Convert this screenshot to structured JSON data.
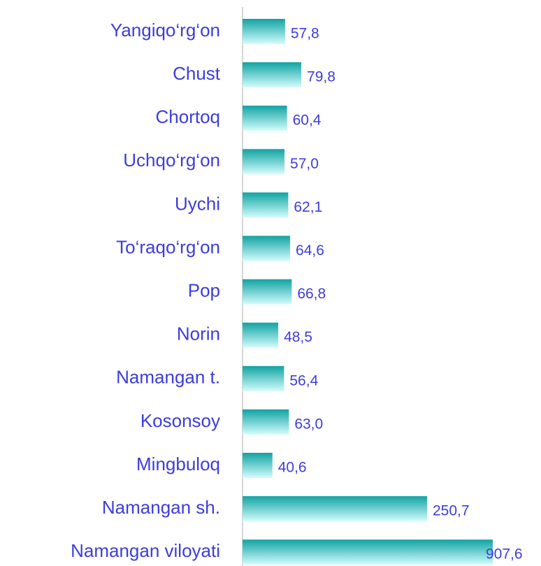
{
  "chart_data": {
    "type": "bar",
    "orientation": "horizontal",
    "categories": [
      "Yangiqo‘rg‘on",
      "Chust",
      "Chortoq",
      "Uchqo‘rg‘on",
      "Uychi",
      "To‘raqo‘rg‘on",
      "Pop",
      "Norin",
      "Namangan t.",
      "Kosonsoy",
      "Mingbuloq",
      "Namangan sh.",
      "Namangan viloyati"
    ],
    "values": [
      57.8,
      79.8,
      60.4,
      57.0,
      62.1,
      64.6,
      66.8,
      48.5,
      56.4,
      63.0,
      40.6,
      250.7,
      907.6
    ],
    "value_labels": [
      "57,8",
      "79,8",
      "60,4",
      "57,0",
      "62,1",
      "64,6",
      "66,8",
      "48,5",
      "56,4",
      "63,0",
      "40,6",
      "250,7",
      "907,6"
    ],
    "color": "#11a3a3",
    "xlim": [
      0,
      340
    ]
  }
}
